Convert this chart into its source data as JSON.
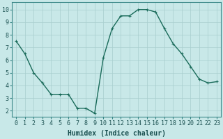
{
  "x": [
    0,
    1,
    2,
    3,
    4,
    5,
    6,
    7,
    8,
    9,
    10,
    11,
    12,
    13,
    14,
    15,
    16,
    17,
    18,
    19,
    20,
    21,
    22,
    23
  ],
  "y": [
    7.5,
    6.5,
    5.0,
    4.2,
    3.3,
    3.3,
    3.3,
    2.2,
    2.2,
    1.8,
    6.2,
    8.5,
    9.5,
    9.5,
    10.0,
    10.0,
    9.8,
    8.5,
    7.3,
    6.5,
    5.5,
    4.5,
    4.2,
    4.3
  ],
  "line_color": "#1a6b5a",
  "marker": "+",
  "marker_size": 3,
  "line_width": 1.0,
  "bg_color": "#c8e8e8",
  "grid_color": "#a8cece",
  "xlabel": "Humidex (Indice chaleur)",
  "xlabel_fontsize": 7,
  "tick_fontsize": 6,
  "xlim": [
    -0.5,
    23.5
  ],
  "ylim": [
    1.5,
    10.6
  ],
  "yticks": [
    2,
    3,
    4,
    5,
    6,
    7,
    8,
    9,
    10
  ],
  "xticks": [
    0,
    1,
    2,
    3,
    4,
    5,
    6,
    7,
    8,
    9,
    10,
    11,
    12,
    13,
    14,
    15,
    16,
    17,
    18,
    19,
    20,
    21,
    22,
    23
  ]
}
